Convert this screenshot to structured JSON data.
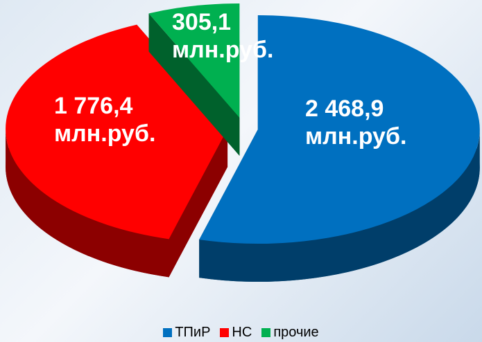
{
  "chart_data": {
    "type": "pie",
    "categories": [
      "ТПиР",
      "НС",
      "прочие"
    ],
    "values": [
      2468.9,
      1776.4,
      305.1
    ],
    "value_labels": [
      "2 468,9\nмлн.руб.",
      "1 776,4\nмлн.руб.",
      "305,1\nмлн.руб."
    ],
    "colors": [
      "#0070c0",
      "#ff0000",
      "#00b050"
    ],
    "legend": "bottom"
  }
}
